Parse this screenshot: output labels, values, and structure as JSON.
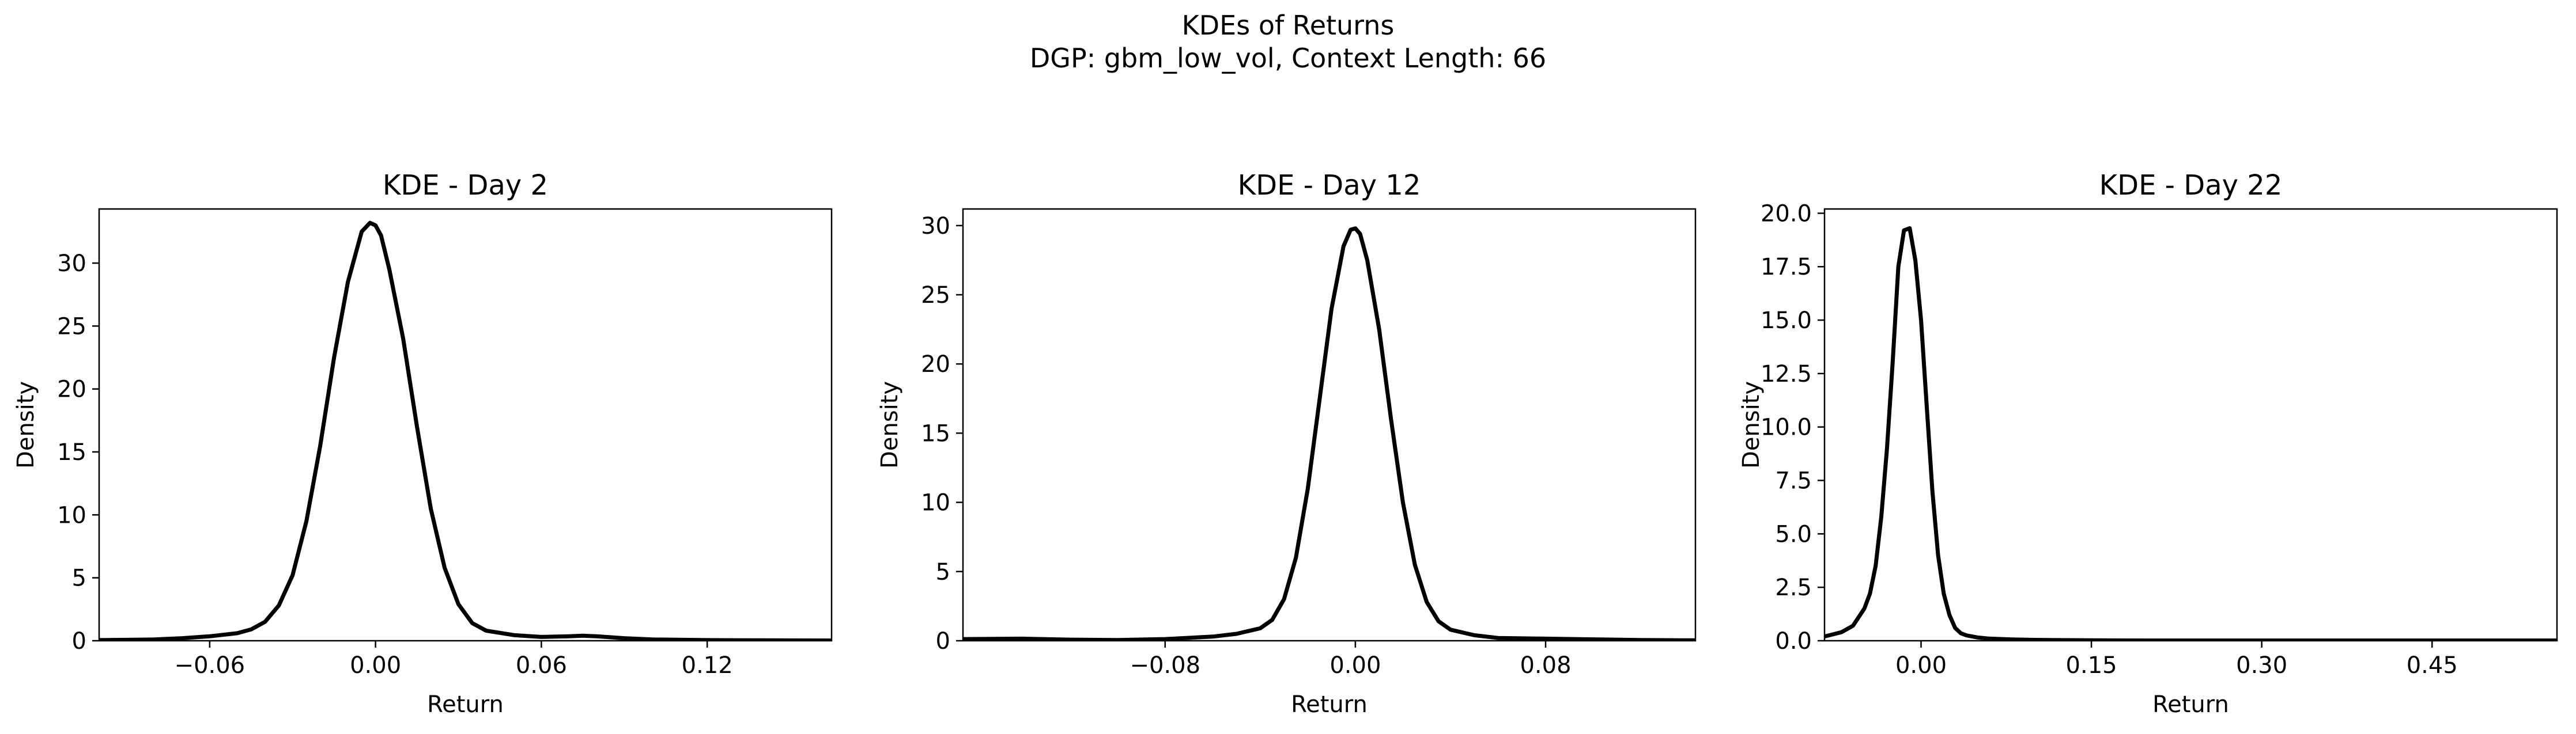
{
  "chart_data": {
    "title": "KDEs of Returns",
    "subtitle": "DGP: gbm_low_vol, Context Length: 66",
    "line_color": "#000000",
    "panels": [
      {
        "type": "line",
        "title": "KDE - Day 2",
        "xlabel": "Return",
        "ylabel": "Density",
        "xlim": [
          -0.1,
          0.165
        ],
        "ylim": [
          0,
          34.3
        ],
        "xticks": [
          -0.06,
          0.0,
          0.06,
          0.12
        ],
        "xtick_labels": [
          "−0.06",
          "0.00",
          "0.06",
          "0.12"
        ],
        "yticks": [
          0,
          5,
          10,
          15,
          20,
          25,
          30
        ],
        "ytick_labels": [
          "0",
          "5",
          "10",
          "15",
          "20",
          "25",
          "30"
        ],
        "grid": false,
        "x": [
          -0.1,
          -0.08,
          -0.07,
          -0.06,
          -0.05,
          -0.045,
          -0.04,
          -0.035,
          -0.03,
          -0.025,
          -0.02,
          -0.015,
          -0.01,
          -0.005,
          -0.002,
          0.0,
          0.002,
          0.005,
          0.01,
          0.015,
          0.02,
          0.025,
          0.03,
          0.035,
          0.04,
          0.05,
          0.06,
          0.07,
          0.075,
          0.08,
          0.09,
          0.1,
          0.12,
          0.14,
          0.165
        ],
        "y": [
          0.05,
          0.1,
          0.2,
          0.35,
          0.6,
          0.9,
          1.5,
          2.8,
          5.2,
          9.5,
          15.5,
          22.5,
          28.5,
          32.5,
          33.2,
          33.0,
          32.2,
          29.5,
          24.0,
          17.0,
          10.5,
          5.8,
          2.9,
          1.4,
          0.8,
          0.45,
          0.3,
          0.35,
          0.4,
          0.35,
          0.2,
          0.1,
          0.05,
          0.03,
          0.02
        ]
      },
      {
        "type": "line",
        "title": "KDE - Day 12",
        "xlabel": "Return",
        "ylabel": "Density",
        "xlim": [
          -0.165,
          0.143
        ],
        "ylim": [
          0,
          31.2
        ],
        "xticks": [
          -0.08,
          0.0,
          0.08
        ],
        "xtick_labels": [
          "−0.08",
          "0.00",
          "0.08"
        ],
        "yticks": [
          0,
          5,
          10,
          15,
          20,
          25,
          30
        ],
        "ytick_labels": [
          "0",
          "5",
          "10",
          "15",
          "20",
          "25",
          "30"
        ],
        "grid": false,
        "x": [
          -0.165,
          -0.14,
          -0.12,
          -0.1,
          -0.08,
          -0.06,
          -0.05,
          -0.04,
          -0.035,
          -0.03,
          -0.025,
          -0.02,
          -0.015,
          -0.01,
          -0.005,
          -0.002,
          0.0,
          0.002,
          0.005,
          0.01,
          0.015,
          0.02,
          0.025,
          0.03,
          0.035,
          0.04,
          0.05,
          0.06,
          0.08,
          0.1,
          0.12,
          0.143
        ],
        "y": [
          0.12,
          0.15,
          0.08,
          0.05,
          0.12,
          0.3,
          0.5,
          0.9,
          1.5,
          3.0,
          6.0,
          11.0,
          17.5,
          24.0,
          28.5,
          29.7,
          29.8,
          29.4,
          27.5,
          22.5,
          16.0,
          10.0,
          5.5,
          2.8,
          1.4,
          0.8,
          0.4,
          0.2,
          0.15,
          0.1,
          0.05,
          0.03
        ]
      },
      {
        "type": "line",
        "title": "KDE - Day 22",
        "xlabel": "Return",
        "ylabel": "Density",
        "xlim": [
          -0.085,
          0.56
        ],
        "ylim": [
          0,
          20.2
        ],
        "xticks": [
          0.0,
          0.15,
          0.3,
          0.45
        ],
        "xtick_labels": [
          "0.00",
          "0.15",
          "0.30",
          "0.45"
        ],
        "yticks": [
          0,
          2.5,
          5,
          7.5,
          10,
          12.5,
          15,
          17.5,
          20
        ],
        "ytick_labels": [
          "0.0",
          "2.5",
          "5.0",
          "7.5",
          "10.0",
          "12.5",
          "15.0",
          "17.5",
          "20.0"
        ],
        "grid": false,
        "x": [
          -0.085,
          -0.07,
          -0.06,
          -0.05,
          -0.045,
          -0.04,
          -0.035,
          -0.03,
          -0.025,
          -0.02,
          -0.015,
          -0.01,
          -0.005,
          0.0,
          0.005,
          0.01,
          0.015,
          0.02,
          0.025,
          0.03,
          0.035,
          0.04,
          0.05,
          0.06,
          0.08,
          0.1,
          0.15,
          0.2,
          0.3,
          0.4,
          0.56
        ],
        "y": [
          0.2,
          0.4,
          0.7,
          1.5,
          2.2,
          3.5,
          5.8,
          9.0,
          13.0,
          17.5,
          19.2,
          19.3,
          17.8,
          15.0,
          11.0,
          7.0,
          4.0,
          2.2,
          1.2,
          0.6,
          0.35,
          0.25,
          0.15,
          0.1,
          0.06,
          0.04,
          0.02,
          0.01,
          0.01,
          0.01,
          0.01
        ]
      }
    ]
  }
}
